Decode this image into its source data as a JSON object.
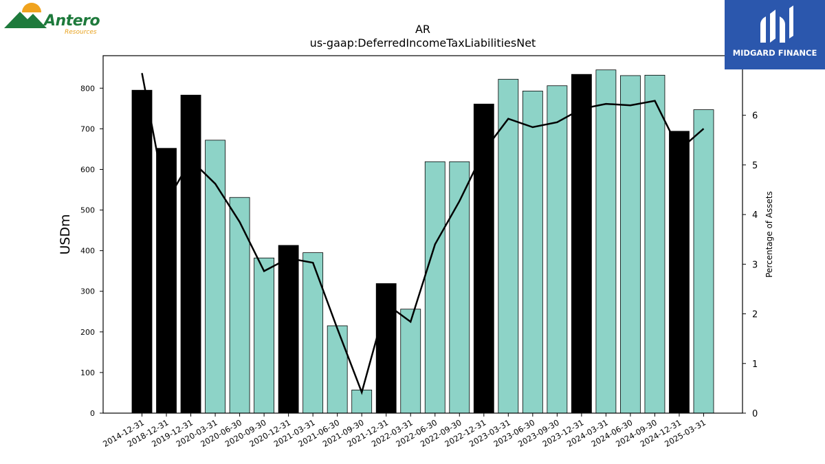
{
  "logos": {
    "left": {
      "name": "Antero",
      "sub": "Resources"
    },
    "right": {
      "name": "MIDGARD FINANCE"
    }
  },
  "colors": {
    "bar_annual": "#000000",
    "bar_quarter": "#8dd3c7",
    "line": "#000000"
  },
  "chart_data": {
    "type": "bar",
    "title": "AR",
    "subtitle": "us-gaap:DeferredIncomeTaxLiabilitiesNet",
    "ylabel": "USDm",
    "y2label": "Percentage of Assets",
    "ylim": [
      0,
      880
    ],
    "y2lim": [
      0,
      7.2
    ],
    "yticks": [
      0,
      100,
      200,
      300,
      400,
      500,
      600,
      700,
      800
    ],
    "y2ticks": [
      0,
      1,
      2,
      3,
      4,
      5,
      6
    ],
    "categories": [
      "2014-12-31",
      "2018-12-31",
      "2019-12-31",
      "2020-03-31",
      "2020-06-30",
      "2020-09-30",
      "2020-12-31",
      "2021-03-31",
      "2021-06-30",
      "2021-09-30",
      "2021-12-31",
      "2022-03-31",
      "2022-06-30",
      "2022-09-30",
      "2022-12-31",
      "2023-03-31",
      "2023-06-30",
      "2023-09-30",
      "2023-12-31",
      "2024-03-31",
      "2024-06-30",
      "2024-09-30",
      "2024-12-31",
      "2025-03-31"
    ],
    "series": [
      {
        "type": "bar",
        "values": [
          795,
          652,
          783,
          672,
          531,
          382,
          413,
          395,
          215,
          57,
          319,
          256,
          619,
          619,
          761,
          822,
          793,
          806,
          834,
          845,
          831,
          832,
          694,
          747
        ]
      },
      {
        "type": "line",
        "axis": "right",
        "values": [
          6.85,
          4.25,
          5.1,
          4.62,
          3.85,
          2.86,
          3.12,
          3.03,
          1.7,
          0.42,
          2.2,
          1.84,
          3.4,
          4.27,
          5.28,
          5.93,
          5.76,
          5.86,
          6.13,
          6.23,
          6.2,
          6.29,
          5.3,
          5.73
        ]
      }
    ],
    "annual_flags": [
      true,
      true,
      true,
      false,
      false,
      false,
      true,
      false,
      false,
      false,
      true,
      false,
      false,
      false,
      true,
      false,
      false,
      false,
      true,
      false,
      false,
      false,
      true,
      false
    ],
    "legend": "none",
    "grid": false
  }
}
